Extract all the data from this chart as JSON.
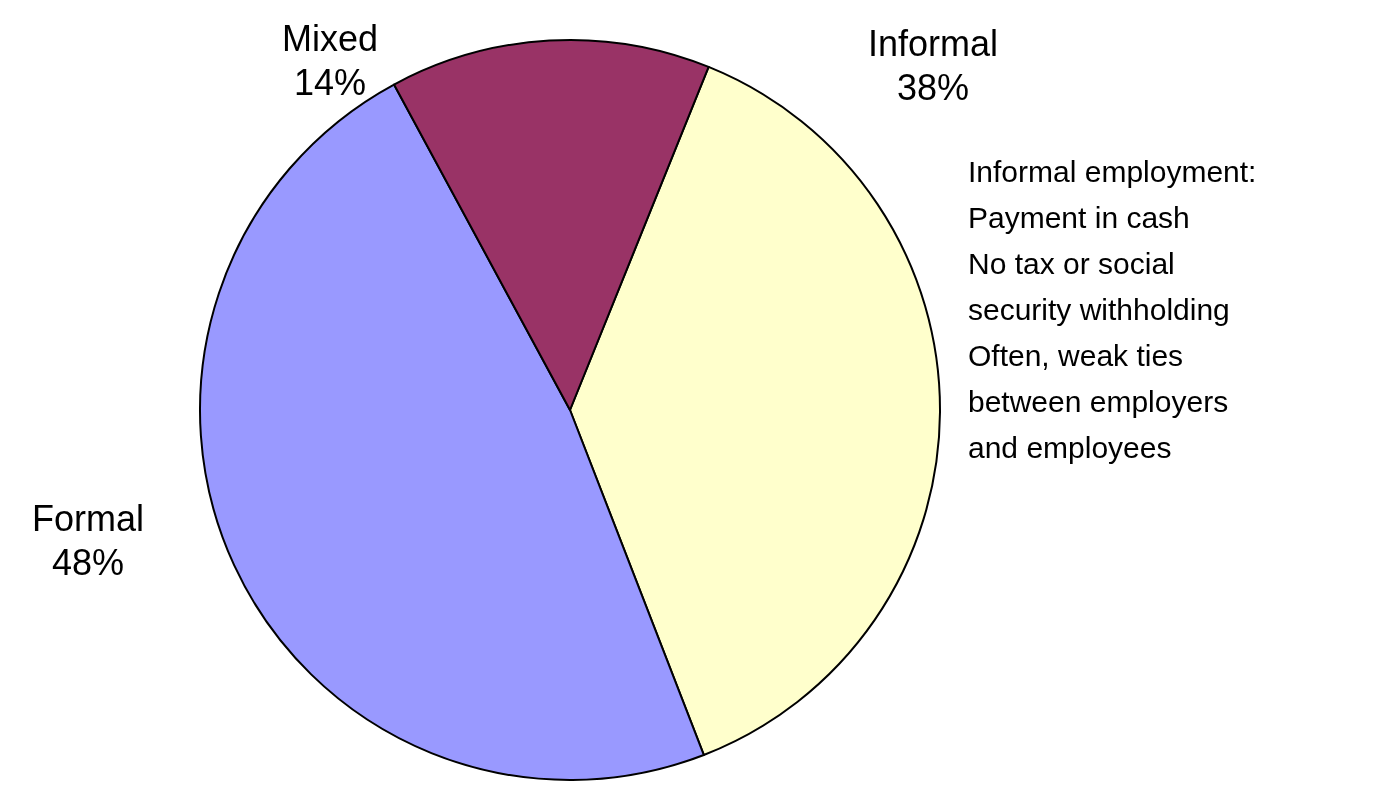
{
  "chart_data": {
    "type": "pie",
    "categories": [
      "Informal",
      "Formal",
      "Mixed"
    ],
    "values": [
      38,
      48,
      14
    ],
    "value_labels": [
      "38%",
      "48%",
      "14%"
    ],
    "colors": [
      "#ffffcc",
      "#9999ff",
      "#993366"
    ],
    "annotations": [
      "Informal employment:\nPayment in cash\nNo tax or social\nsecurity withholding\nOften, weak ties\nbetween employers\nand employees"
    ],
    "legend": false
  }
}
